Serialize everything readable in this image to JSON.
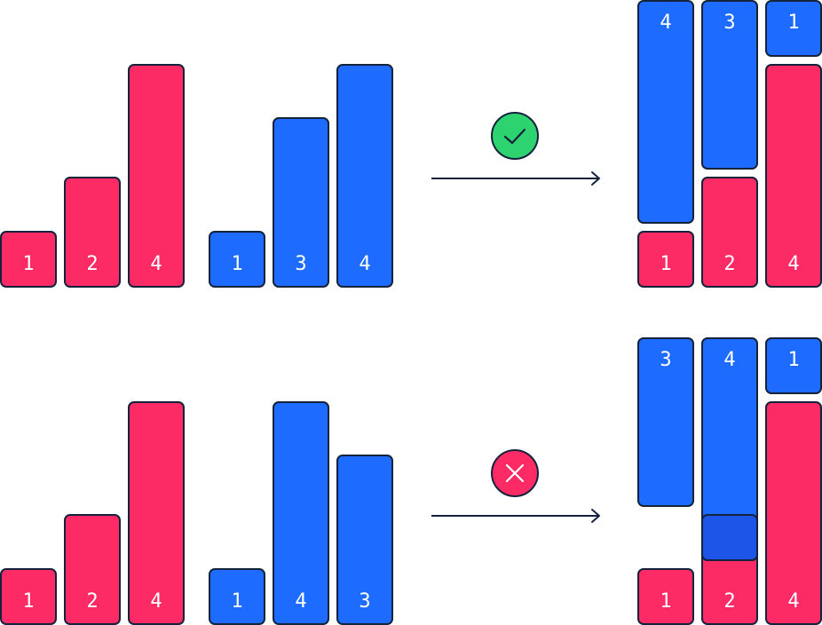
{
  "colors": {
    "red": "#fc2b66",
    "blue": "#1e6cff",
    "overlap": "#1d55e8",
    "outline": "#14233c",
    "check_badge": "#2dd36f",
    "cross_badge": "#fc2b66"
  },
  "rows": [
    {
      "status_icon": "check-icon",
      "red_labels": [
        "1",
        "2",
        "4"
      ],
      "blue_labels": [
        "1",
        "3",
        "4"
      ],
      "result_top_labels": [
        "4",
        "3",
        "1"
      ],
      "result_bottom_labels": [
        "1",
        "2",
        "4"
      ]
    },
    {
      "status_icon": "cross-icon",
      "red_labels": [
        "1",
        "2",
        "4"
      ],
      "blue_labels": [
        "1",
        "4",
        "3"
      ],
      "result_top_labels": [
        "3",
        "4",
        "1"
      ],
      "result_bottom_labels": [
        "1",
        "2",
        "4"
      ]
    }
  ]
}
